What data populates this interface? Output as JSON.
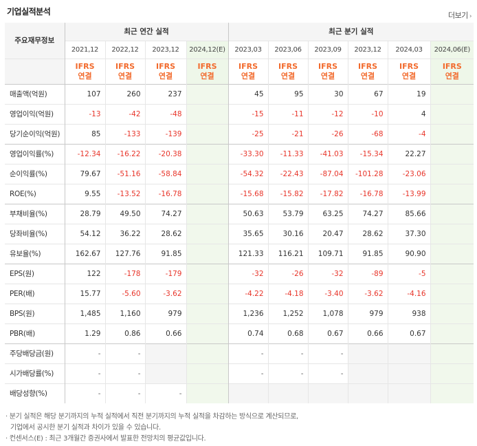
{
  "header": {
    "title": "기업실적분석",
    "more_label": "더보기"
  },
  "table": {
    "corner_label": "주요재무정보",
    "annual_label": "최근 연간 실적",
    "quarter_label": "최근 분기 실적",
    "annual_periods": [
      "2021,12",
      "2022,12",
      "2023,12",
      "2024,12(E)"
    ],
    "quarter_periods": [
      "2023,03",
      "2023,06",
      "2023,09",
      "2023,12",
      "2024,03",
      "2024,06(E)"
    ],
    "ifrs_top": "IFRS",
    "ifrs_bottom": "연결",
    "rows": [
      {
        "label": "매출액(억원)",
        "values": [
          "107",
          "260",
          "237",
          "",
          "45",
          "95",
          "30",
          "67",
          "19",
          ""
        ]
      },
      {
        "label": "영업이익(억원)",
        "values": [
          "-13",
          "-42",
          "-48",
          "",
          "-15",
          "-11",
          "-12",
          "-10",
          "4",
          ""
        ]
      },
      {
        "label": "당기순이익(억원)",
        "values": [
          "85",
          "-133",
          "-139",
          "",
          "-25",
          "-21",
          "-26",
          "-68",
          "-4",
          ""
        ]
      },
      {
        "label": "영업이익률(%)",
        "values": [
          "-12.34",
          "-16.22",
          "-20.38",
          "",
          "-33.30",
          "-11.33",
          "-41.03",
          "-15.34",
          "22.27",
          ""
        ]
      },
      {
        "label": "순이익률(%)",
        "values": [
          "79.67",
          "-51.16",
          "-58.84",
          "",
          "-54.32",
          "-22.43",
          "-87.04",
          "-101.28",
          "-23.06",
          ""
        ]
      },
      {
        "label": "ROE(%)",
        "values": [
          "9.55",
          "-13.52",
          "-16.78",
          "",
          "-15.68",
          "-15.82",
          "-17.82",
          "-16.78",
          "-13.99",
          ""
        ]
      },
      {
        "label": "부채비율(%)",
        "values": [
          "28.79",
          "49.50",
          "74.27",
          "",
          "50.63",
          "53.79",
          "63.25",
          "74.27",
          "85.66",
          ""
        ]
      },
      {
        "label": "당좌비율(%)",
        "values": [
          "54.12",
          "36.22",
          "28.62",
          "",
          "35.65",
          "30.16",
          "20.47",
          "28.62",
          "37.30",
          ""
        ]
      },
      {
        "label": "유보율(%)",
        "values": [
          "162.67",
          "127.76",
          "91.85",
          "",
          "121.33",
          "116.21",
          "109.71",
          "91.85",
          "90.90",
          ""
        ]
      },
      {
        "label": "EPS(원)",
        "values": [
          "122",
          "-178",
          "-179",
          "",
          "-32",
          "-26",
          "-32",
          "-89",
          "-5",
          ""
        ]
      },
      {
        "label": "PER(배)",
        "values": [
          "15.77",
          "-5.60",
          "-3.62",
          "",
          "-4.22",
          "-4.18",
          "-3.40",
          "-3.62",
          "-4.16",
          ""
        ]
      },
      {
        "label": "BPS(원)",
        "values": [
          "1,485",
          "1,160",
          "979",
          "",
          "1,236",
          "1,252",
          "1,078",
          "979",
          "938",
          ""
        ]
      },
      {
        "label": "PBR(배)",
        "values": [
          "1.29",
          "0.86",
          "0.66",
          "",
          "0.74",
          "0.68",
          "0.67",
          "0.66",
          "0.67",
          ""
        ]
      },
      {
        "label": "주당배당금(원)",
        "values": [
          "-",
          "-",
          "",
          "",
          "-",
          "-",
          "-",
          "",
          "",
          ""
        ]
      },
      {
        "label": "시가배당률(%)",
        "values": [
          "-",
          "-",
          "",
          "",
          "-",
          "-",
          "-",
          "",
          "",
          ""
        ]
      },
      {
        "label": "배당성향(%)",
        "values": [
          "-",
          "-",
          "-",
          "",
          "",
          "",
          "",
          "",
          "",
          ""
        ]
      }
    ]
  },
  "notes": {
    "line1": "· 분기 실적은 해당 분기까지의 누적 실적에서 직전 분기까지의 누적 실적을 차감하는 방식으로 계산되므로,",
    "line2": "기업에서 공시한 분기 실적과 차이가 있을 수 있습니다.",
    "line3": "· 컨센서스(E) : 최근 3개월간 증권사에서 발표한 전망치의 평균값입니다."
  },
  "colors": {
    "negative": "#e8352a",
    "ifrs": "#f26a2c",
    "estimate_bg": "#f1f8ec"
  }
}
